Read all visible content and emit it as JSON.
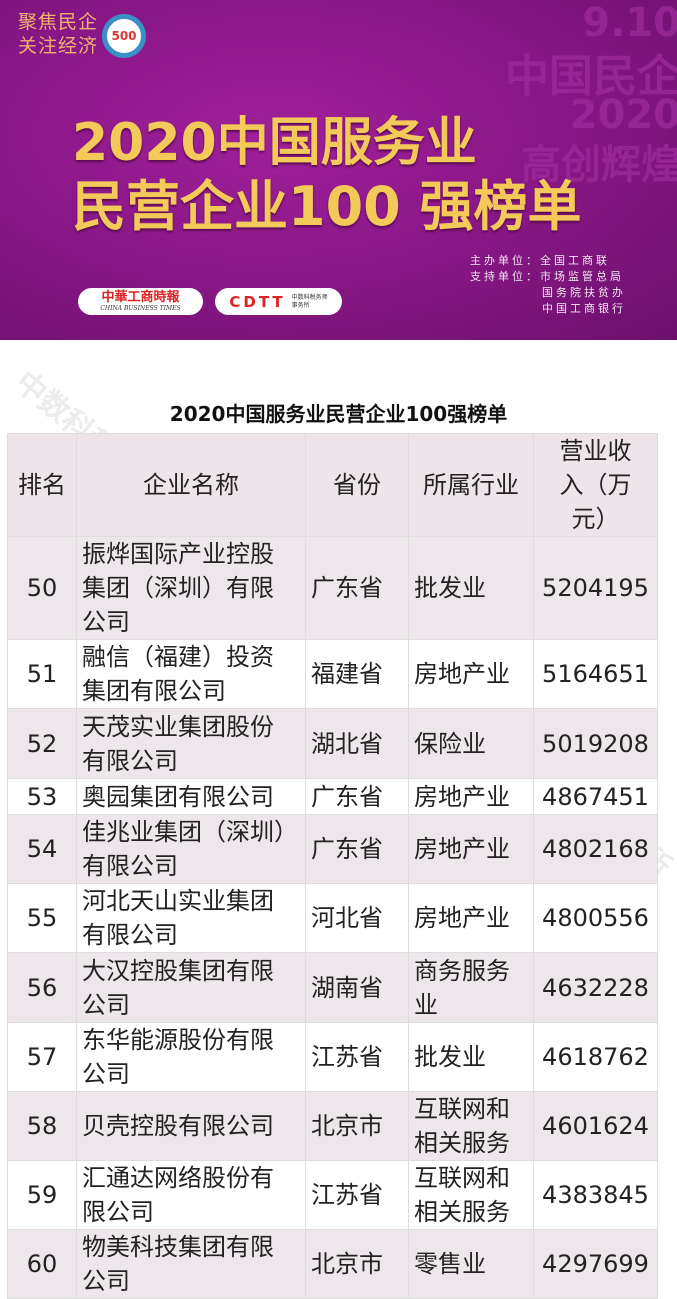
{
  "banner": {
    "slogan": [
      "聚焦民企",
      "关注经济"
    ],
    "badge": "500",
    "ghost": [
      "9.10",
      "中国民企",
      "2020",
      "高创辉煌"
    ],
    "title_line1": "2020中国服务业",
    "title_line2": "民营企业100 强榜单",
    "sponsors": [
      "主办单位：全国工商联",
      "支持单位：市场监管总局",
      "国务院扶贫办",
      "中国工商银行"
    ],
    "partner1": {
      "name": "中華工商時報",
      "en": "CHINA BUSINESS TIMES"
    },
    "partner2": {
      "name": "CDTT",
      "sub": "中数科税务师事务所"
    }
  },
  "table": {
    "title": "2020中国服务业民营企业100强榜单",
    "headers": [
      "排名",
      "企业名称",
      "省份",
      "所属行业",
      "营业收入（万元）"
    ],
    "rows": [
      [
        "50",
        "振烨国际产业控股集团（深圳）有限公司",
        "广东省",
        "批发业",
        "5204195"
      ],
      [
        "51",
        "融信（福建）投资集团有限公司",
        "福建省",
        "房地产业",
        "5164651"
      ],
      [
        "52",
        "天茂实业集团股份有限公司",
        "湖北省",
        "保险业",
        "5019208"
      ],
      [
        "53",
        "奥园集团有限公司",
        "广东省",
        "房地产业",
        "4867451"
      ],
      [
        "54",
        "佳兆业集团（深圳）有限公司",
        "广东省",
        "房地产业",
        "4802168"
      ],
      [
        "55",
        "河北天山实业集团有限公司",
        "河北省",
        "房地产业",
        "4800556"
      ],
      [
        "56",
        "大汉控股集团有限公司",
        "湖南省",
        "商务服务业",
        "4632228"
      ],
      [
        "57",
        "东华能源股份有限公司",
        "江苏省",
        "批发业",
        "4618762"
      ],
      [
        "58",
        "贝壳控股有限公司",
        "北京市",
        "互联网和相关服务",
        "4601624"
      ],
      [
        "59",
        "汇通达网络股份有限公司",
        "江苏省",
        "互联网和相关服务",
        "4383845"
      ],
      [
        "60",
        "物美科技集团有限公司",
        "北京市",
        "零售业",
        "4297699"
      ]
    ]
  },
  "watermark": "中数科税务师事务所"
}
